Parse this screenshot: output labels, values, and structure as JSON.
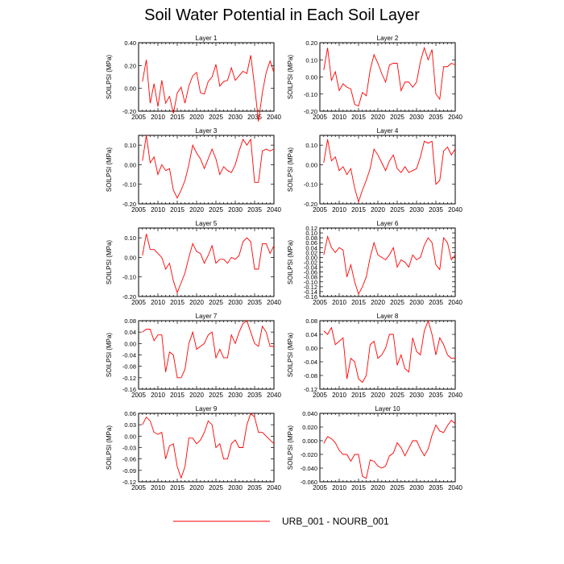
{
  "title": "Soil Water Potential in Each Soil Layer",
  "legend": {
    "label": "URB_001 - NOURB_001",
    "color": "#ff0000"
  },
  "chart_data": [
    {
      "type": "line",
      "title": "Layer 1",
      "ylabel": "SOILPSI  (MPa)",
      "xlim": [
        2005,
        2040
      ],
      "ylim": [
        -0.2,
        0.4
      ],
      "xticks": [
        2005,
        2010,
        2015,
        2020,
        2025,
        2030,
        2035,
        2040
      ],
      "yticks": [
        "-0.20",
        "0.00",
        "0.20",
        "0.40"
      ],
      "series": [
        {
          "color": "#ff0000",
          "x": [
            2006,
            2007,
            2008,
            2009,
            2010,
            2011,
            2012,
            2013,
            2014,
            2015,
            2016,
            2017,
            2018,
            2019,
            2020,
            2021,
            2022,
            2023,
            2024,
            2025,
            2026,
            2027,
            2028,
            2029,
            2030,
            2031,
            2032,
            2033,
            2034,
            2035,
            2036,
            2037,
            2038,
            2039,
            2040
          ],
          "y": [
            0.06,
            0.25,
            -0.13,
            0.04,
            -0.16,
            0.07,
            -0.13,
            -0.07,
            -0.22,
            -0.04,
            0.01,
            -0.13,
            0.02,
            0.11,
            0.14,
            -0.04,
            -0.05,
            0.06,
            0.1,
            0.21,
            0.02,
            0.06,
            0.07,
            0.18,
            0.07,
            0.11,
            0.15,
            0.13,
            0.29,
            0.02,
            -0.29,
            -0.04,
            0.14,
            0.24,
            0.14
          ]
        }
      ]
    },
    {
      "type": "line",
      "title": "Layer 2",
      "ylabel": "SOILPSI  (MPa)",
      "xlim": [
        2005,
        2040
      ],
      "ylim": [
        -0.2,
        0.2
      ],
      "xticks": [
        2005,
        2010,
        2015,
        2020,
        2025,
        2030,
        2035,
        2040
      ],
      "yticks": [
        "-0.20",
        "-0.10",
        "0.00",
        "0.10",
        "0.20"
      ],
      "series": [
        {
          "color": "#ff0000",
          "x": [
            2006,
            2007,
            2008,
            2009,
            2010,
            2011,
            2012,
            2013,
            2014,
            2015,
            2016,
            2017,
            2018,
            2019,
            2020,
            2021,
            2022,
            2023,
            2024,
            2025,
            2026,
            2027,
            2028,
            2029,
            2030,
            2031,
            2032,
            2033,
            2034,
            2035,
            2036,
            2037,
            2038,
            2039,
            2040
          ],
          "y": [
            0.04,
            0.17,
            -0.02,
            0.03,
            -0.08,
            -0.04,
            -0.06,
            -0.07,
            -0.16,
            -0.17,
            -0.09,
            -0.11,
            0.04,
            0.13,
            0.08,
            0.02,
            -0.03,
            0.07,
            0.08,
            0.08,
            -0.08,
            -0.03,
            -0.03,
            -0.06,
            -0.03,
            0.09,
            0.17,
            0.1,
            0.16,
            -0.1,
            -0.13,
            0.06,
            0.06,
            0.08,
            0.07
          ]
        }
      ]
    },
    {
      "type": "line",
      "title": "Layer 3",
      "ylabel": "SOILPSI  (MPa)",
      "xlim": [
        2005,
        2040
      ],
      "ylim": [
        -0.2,
        0.15
      ],
      "xticks": [
        2005,
        2010,
        2015,
        2020,
        2025,
        2030,
        2035,
        2040
      ],
      "yticks": [
        "-0.20",
        "-0.10",
        "0.00",
        "0.10"
      ],
      "series": [
        {
          "color": "#ff0000",
          "x": [
            2006,
            2007,
            2008,
            2009,
            2010,
            2011,
            2012,
            2013,
            2014,
            2015,
            2016,
            2017,
            2018,
            2019,
            2020,
            2021,
            2022,
            2023,
            2024,
            2025,
            2026,
            2027,
            2028,
            2029,
            2030,
            2031,
            2032,
            2033,
            2034,
            2035,
            2036,
            2037,
            2038,
            2039,
            2040
          ],
          "y": [
            0.02,
            0.15,
            0.01,
            0.04,
            -0.05,
            0.0,
            -0.03,
            -0.02,
            -0.13,
            -0.17,
            -0.13,
            -0.08,
            0.0,
            0.1,
            0.06,
            0.03,
            -0.02,
            0.03,
            0.08,
            0.03,
            -0.05,
            -0.01,
            -0.03,
            -0.04,
            0.0,
            0.07,
            0.13,
            0.1,
            0.13,
            -0.09,
            -0.09,
            0.07,
            0.08,
            0.07,
            0.08
          ]
        }
      ]
    },
    {
      "type": "line",
      "title": "Layer 4",
      "ylabel": "SOILPSI  (MPa)",
      "xlim": [
        2005,
        2040
      ],
      "ylim": [
        -0.2,
        0.15
      ],
      "xticks": [
        2005,
        2010,
        2015,
        2020,
        2025,
        2030,
        2035,
        2040
      ],
      "yticks": [
        "-0.20",
        "-0.10",
        "0.00",
        "0.10"
      ],
      "series": [
        {
          "color": "#ff0000",
          "x": [
            2006,
            2007,
            2008,
            2009,
            2010,
            2011,
            2012,
            2013,
            2014,
            2015,
            2016,
            2017,
            2018,
            2019,
            2020,
            2021,
            2022,
            2023,
            2024,
            2025,
            2026,
            2027,
            2028,
            2029,
            2030,
            2031,
            2032,
            2033,
            2034,
            2035,
            2036,
            2037,
            2038,
            2039,
            2040
          ],
          "y": [
            0.01,
            0.13,
            0.02,
            0.04,
            -0.03,
            -0.01,
            -0.05,
            -0.02,
            -0.12,
            -0.19,
            -0.13,
            -0.08,
            -0.02,
            0.08,
            0.05,
            0.01,
            -0.03,
            0.02,
            0.05,
            -0.02,
            -0.04,
            -0.01,
            -0.04,
            -0.03,
            -0.02,
            0.04,
            0.12,
            0.11,
            0.12,
            -0.1,
            -0.08,
            0.07,
            0.09,
            0.05,
            0.08
          ]
        }
      ]
    },
    {
      "type": "line",
      "title": "Layer 5",
      "ylabel": "SOILPSI  (MPa)",
      "xlim": [
        2005,
        2040
      ],
      "ylim": [
        -0.2,
        0.15
      ],
      "xticks": [
        2005,
        2010,
        2015,
        2020,
        2025,
        2030,
        2035,
        2040
      ],
      "yticks": [
        "-0.20",
        "-0.10",
        "0.00",
        "0.10"
      ],
      "series": [
        {
          "color": "#ff0000",
          "x": [
            2006,
            2007,
            2008,
            2009,
            2010,
            2011,
            2012,
            2013,
            2014,
            2015,
            2016,
            2017,
            2018,
            2019,
            2020,
            2021,
            2022,
            2023,
            2024,
            2025,
            2026,
            2027,
            2028,
            2029,
            2030,
            2031,
            2032,
            2033,
            2034,
            2035,
            2036,
            2037,
            2038,
            2039,
            2040
          ],
          "y": [
            0.01,
            0.12,
            0.04,
            0.04,
            0.02,
            0.0,
            -0.06,
            -0.03,
            -0.12,
            -0.18,
            -0.13,
            -0.08,
            0.0,
            0.07,
            0.03,
            0.02,
            -0.03,
            0.01,
            0.06,
            -0.03,
            -0.01,
            -0.01,
            -0.03,
            0.0,
            -0.01,
            0.01,
            0.08,
            0.1,
            0.08,
            -0.06,
            -0.06,
            0.07,
            0.07,
            0.02,
            0.06
          ]
        }
      ]
    },
    {
      "type": "line",
      "title": "Layer 6",
      "ylabel": "SOILPSI  (MPa)",
      "xlim": [
        2005,
        2040
      ],
      "ylim": [
        -0.16,
        0.12
      ],
      "xticks": [
        2005,
        2010,
        2015,
        2020,
        2025,
        2030,
        2035,
        2040
      ],
      "yticks": [
        "-0.16",
        "-0.14",
        "-0.12",
        "-0.10",
        "-0.08",
        "-0.06",
        "-0.04",
        "-0.02",
        "0.00",
        "0.02",
        "0.04",
        "0.06",
        "0.08",
        "0.10",
        "0.12"
      ],
      "series": [
        {
          "color": "#ff0000",
          "x": [
            2006,
            2007,
            2008,
            2009,
            2010,
            2011,
            2012,
            2013,
            2014,
            2015,
            2016,
            2017,
            2018,
            2019,
            2020,
            2021,
            2022,
            2023,
            2024,
            2025,
            2026,
            2027,
            2028,
            2029,
            2030,
            2031,
            2032,
            2033,
            2034,
            2035,
            2036,
            2037,
            2038,
            2039,
            2040
          ],
          "y": [
            0.01,
            0.085,
            0.04,
            0.02,
            0.04,
            0.03,
            -0.08,
            -0.03,
            -0.1,
            -0.15,
            -0.12,
            -0.08,
            0.0,
            0.06,
            0.01,
            0.0,
            -0.01,
            0.01,
            0.04,
            -0.04,
            -0.01,
            -0.02,
            -0.04,
            0.01,
            -0.01,
            0.0,
            0.05,
            0.08,
            0.06,
            -0.03,
            -0.05,
            0.08,
            0.06,
            -0.01,
            0.01
          ]
        }
      ]
    },
    {
      "type": "line",
      "title": "Layer 7",
      "ylabel": "SOILPSI  (MPa)",
      "xlim": [
        2005,
        2040
      ],
      "ylim": [
        -0.16,
        0.08
      ],
      "xticks": [
        2005,
        2010,
        2015,
        2020,
        2025,
        2030,
        2035,
        2040
      ],
      "yticks": [
        "-0.16",
        "-0.12",
        "-0.08",
        "-0.04",
        "0.00",
        "0.04",
        "0.08"
      ],
      "series": [
        {
          "color": "#ff0000",
          "x": [
            2006,
            2007,
            2008,
            2009,
            2010,
            2011,
            2012,
            2013,
            2014,
            2015,
            2016,
            2017,
            2018,
            2019,
            2020,
            2021,
            2022,
            2023,
            2024,
            2025,
            2026,
            2027,
            2028,
            2029,
            2030,
            2031,
            2032,
            2033,
            2034,
            2035,
            2036,
            2037,
            2038,
            2039,
            2040
          ],
          "y": [
            0.04,
            0.05,
            0.05,
            0.01,
            0.03,
            0.03,
            -0.1,
            -0.03,
            -0.04,
            -0.12,
            -0.12,
            -0.09,
            0.0,
            0.04,
            -0.02,
            -0.01,
            0.0,
            0.03,
            0.04,
            -0.05,
            -0.02,
            -0.05,
            -0.05,
            0.03,
            0.0,
            0.04,
            0.07,
            0.08,
            0.04,
            0.0,
            -0.01,
            0.06,
            0.04,
            -0.01,
            -0.01
          ]
        }
      ]
    },
    {
      "type": "line",
      "title": "Layer 8",
      "ylabel": "SOILPSI  (MPa)",
      "xlim": [
        2005,
        2040
      ],
      "ylim": [
        -0.12,
        0.08
      ],
      "xticks": [
        2005,
        2010,
        2015,
        2020,
        2025,
        2030,
        2035,
        2040
      ],
      "yticks": [
        "-0.12",
        "-0.08",
        "-0.04",
        "0.00",
        "0.04",
        "0.08"
      ],
      "series": [
        {
          "color": "#ff0000",
          "x": [
            2006,
            2007,
            2008,
            2009,
            2010,
            2011,
            2012,
            2013,
            2014,
            2015,
            2016,
            2017,
            2018,
            2019,
            2020,
            2021,
            2022,
            2023,
            2024,
            2025,
            2026,
            2027,
            2028,
            2029,
            2030,
            2031,
            2032,
            2033,
            2034,
            2035,
            2036,
            2037,
            2038,
            2039,
            2040
          ],
          "y": [
            0.05,
            0.04,
            0.06,
            0.01,
            0.02,
            0.03,
            -0.09,
            -0.03,
            -0.04,
            -0.09,
            -0.1,
            -0.08,
            0.01,
            0.02,
            -0.03,
            -0.02,
            0.0,
            0.04,
            0.04,
            -0.05,
            -0.02,
            -0.06,
            -0.07,
            0.03,
            -0.01,
            -0.02,
            0.05,
            0.08,
            0.04,
            -0.02,
            0.03,
            0.01,
            -0.02,
            -0.03,
            -0.03
          ]
        }
      ]
    },
    {
      "type": "line",
      "title": "Layer 9",
      "ylabel": "SOILPSI  (MPa)",
      "xlim": [
        2005,
        2040
      ],
      "ylim": [
        -0.12,
        0.06
      ],
      "xticks": [
        2005,
        2010,
        2015,
        2020,
        2025,
        2030,
        2035,
        2040
      ],
      "yticks": [
        "-0.12",
        "-0.09",
        "-0.06",
        "-0.03",
        "0.00",
        "0.03",
        "0.06"
      ],
      "series": [
        {
          "color": "#ff0000",
          "x": [
            2006,
            2007,
            2008,
            2009,
            2010,
            2011,
            2012,
            2013,
            2014,
            2015,
            2016,
            2017,
            2018,
            2019,
            2020,
            2021,
            2022,
            2023,
            2024,
            2025,
            2026,
            2027,
            2028,
            2029,
            2030,
            2031,
            2032,
            2033,
            2034,
            2035,
            2036,
            2037,
            2038,
            2039,
            2040
          ],
          "y": [
            0.03,
            0.05,
            0.04,
            0.01,
            0.005,
            0.01,
            -0.06,
            -0.025,
            -0.02,
            -0.08,
            -0.11,
            -0.08,
            -0.005,
            -0.005,
            -0.02,
            -0.01,
            0.01,
            0.04,
            0.03,
            -0.03,
            -0.02,
            -0.06,
            -0.06,
            -0.02,
            -0.01,
            -0.03,
            -0.03,
            0.03,
            0.06,
            0.05,
            0.01,
            0.01,
            0.0,
            -0.01,
            -0.02
          ]
        }
      ]
    },
    {
      "type": "line",
      "title": "Layer 10",
      "ylabel": "SOILPSI  (MPa)",
      "xlim": [
        2005,
        2040
      ],
      "ylim": [
        -0.06,
        0.04
      ],
      "xticks": [
        2005,
        2010,
        2015,
        2020,
        2025,
        2030,
        2035,
        2040
      ],
      "yticks": [
        "-0.060",
        "-0.040",
        "-0.020",
        "0.000",
        "0.020",
        "0.040"
      ],
      "series": [
        {
          "color": "#ff0000",
          "x": [
            2006,
            2007,
            2008,
            2009,
            2010,
            2011,
            2012,
            2013,
            2014,
            2015,
            2016,
            2017,
            2018,
            2019,
            2020,
            2021,
            2022,
            2023,
            2024,
            2025,
            2026,
            2027,
            2028,
            2029,
            2030,
            2031,
            2032,
            2033,
            2034,
            2035,
            2036,
            2037,
            2038,
            2039,
            2040
          ],
          "y": [
            -0.004,
            0.006,
            0.003,
            -0.003,
            -0.014,
            -0.02,
            -0.02,
            -0.03,
            -0.02,
            -0.02,
            -0.052,
            -0.055,
            -0.028,
            -0.03,
            -0.037,
            -0.04,
            -0.037,
            -0.022,
            -0.018,
            -0.003,
            -0.01,
            -0.022,
            -0.011,
            0.0,
            0.0,
            -0.012,
            -0.022,
            -0.012,
            0.008,
            0.023,
            0.014,
            0.012,
            0.022,
            0.03,
            0.025
          ]
        }
      ]
    }
  ]
}
